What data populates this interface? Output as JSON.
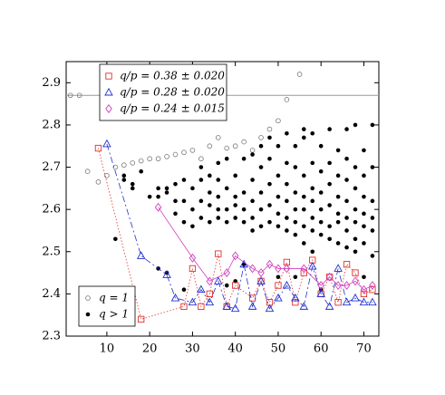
{
  "chart_data": {
    "type": "scatter",
    "xlim": [
      0.5,
      73.5
    ],
    "ylim": [
      2.3,
      2.95
    ],
    "xticks": [
      10,
      20,
      30,
      40,
      50,
      60,
      70
    ],
    "yticks": [
      2.3,
      2.4,
      2.5,
      2.6,
      2.7,
      2.8,
      2.9
    ],
    "hline": 2.87,
    "hline_color": "#999999",
    "series": [
      {
        "name": "q = 1",
        "color": "#777777",
        "marker": "open-circle",
        "x": [
          1.5,
          3.6,
          5.5,
          8,
          10,
          12,
          14,
          16,
          18,
          20,
          22,
          24,
          26,
          28,
          30,
          32,
          34,
          36,
          38,
          40,
          42,
          44,
          46,
          48,
          50,
          52,
          55
        ],
        "values": [
          2.87,
          2.87,
          2.69,
          2.665,
          2.68,
          2.7,
          2.705,
          2.71,
          2.715,
          2.72,
          2.72,
          2.725,
          2.73,
          2.735,
          2.74,
          2.72,
          2.75,
          2.77,
          2.745,
          2.75,
          2.76,
          2.74,
          2.77,
          2.79,
          2.81,
          2.86,
          2.92
        ]
      },
      {
        "name": "q > 1",
        "color": "#000000",
        "marker": "dot",
        "x": [
          12,
          14,
          14,
          16,
          16,
          18,
          20,
          22,
          22,
          22,
          24,
          24,
          24,
          26,
          26,
          26,
          28,
          28,
          28,
          28,
          30,
          30,
          30,
          32,
          32,
          32,
          32,
          34,
          34,
          34,
          34,
          36,
          36,
          36,
          36,
          36,
          38,
          38,
          38,
          38,
          38,
          40,
          40,
          40,
          40,
          40,
          42,
          42,
          42,
          42,
          42,
          44,
          44,
          44,
          44,
          44,
          46,
          46,
          46,
          46,
          46,
          48,
          48,
          48,
          48,
          48,
          50,
          50,
          50,
          50,
          50,
          50,
          52,
          52,
          52,
          52,
          52,
          52,
          54,
          54,
          54,
          54,
          54,
          54,
          54,
          56,
          56,
          56,
          56,
          56,
          56,
          56,
          58,
          58,
          58,
          58,
          58,
          58,
          58,
          60,
          60,
          60,
          60,
          60,
          60,
          60,
          62,
          62,
          62,
          62,
          62,
          62,
          64,
          64,
          64,
          64,
          64,
          64,
          66,
          66,
          66,
          66,
          66,
          66,
          66,
          68,
          68,
          68,
          68,
          68,
          68,
          68,
          70,
          70,
          70,
          70,
          70,
          70,
          70,
          72,
          72,
          72,
          72,
          72,
          72
        ],
        "values": [
          2.53,
          2.68,
          2.67,
          2.66,
          2.65,
          2.69,
          2.63,
          2.46,
          2.65,
          2.63,
          2.45,
          2.64,
          2.65,
          2.59,
          2.66,
          2.62,
          2.41,
          2.57,
          2.62,
          2.67,
          2.56,
          2.6,
          2.65,
          2.58,
          2.62,
          2.67,
          2.7,
          2.57,
          2.61,
          2.64,
          2.68,
          2.58,
          2.6,
          2.63,
          2.67,
          2.71,
          2.42,
          2.57,
          2.6,
          2.65,
          2.72,
          2.43,
          2.58,
          2.61,
          2.63,
          2.68,
          2.57,
          2.6,
          2.64,
          2.72,
          2.47,
          2.55,
          2.58,
          2.62,
          2.67,
          2.73,
          2.56,
          2.6,
          2.64,
          2.7,
          2.75,
          2.57,
          2.61,
          2.66,
          2.72,
          2.77,
          2.44,
          2.56,
          2.59,
          2.63,
          2.68,
          2.75,
          2.55,
          2.58,
          2.62,
          2.66,
          2.71,
          2.78,
          2.44,
          2.54,
          2.57,
          2.6,
          2.64,
          2.7,
          2.75,
          2.52,
          2.56,
          2.6,
          2.63,
          2.68,
          2.77,
          2.79,
          2.5,
          2.55,
          2.58,
          2.62,
          2.65,
          2.71,
          2.78,
          2.41,
          2.54,
          2.57,
          2.6,
          2.64,
          2.69,
          2.75,
          2.53,
          2.56,
          2.61,
          2.66,
          2.71,
          2.79,
          2.52,
          2.57,
          2.59,
          2.63,
          2.68,
          2.74,
          2.51,
          2.55,
          2.58,
          2.62,
          2.67,
          2.72,
          2.79,
          2.5,
          2.53,
          2.57,
          2.6,
          2.65,
          2.7,
          2.8,
          2.44,
          2.52,
          2.56,
          2.59,
          2.63,
          2.68,
          2.74,
          2.49,
          2.55,
          2.58,
          2.62,
          2.7,
          2.8
        ]
      },
      {
        "name": "q/p = 0.38 ± 0.020",
        "color": "#e0302a",
        "marker": "square",
        "line_style": "dotted",
        "x": [
          8,
          18,
          28,
          30,
          32,
          34,
          36,
          38,
          40,
          44,
          46,
          48,
          50,
          52,
          54,
          56,
          58,
          60,
          62,
          64,
          66,
          68,
          70,
          72
        ],
        "values": [
          2.745,
          2.34,
          2.37,
          2.46,
          2.37,
          2.4,
          2.495,
          2.37,
          2.42,
          2.39,
          2.43,
          2.38,
          2.42,
          2.475,
          2.38,
          2.45,
          2.48,
          2.4,
          2.44,
          2.38,
          2.47,
          2.45,
          2.4,
          2.41
        ]
      },
      {
        "name": "q/p = 0.28 ± 0.020",
        "color": "#2030d0",
        "marker": "triangle",
        "line_style": "dashed",
        "x": [
          10,
          18,
          24,
          26,
          30,
          32,
          34,
          36,
          38,
          40,
          42,
          44,
          46,
          48,
          50,
          52,
          54,
          56,
          58,
          60,
          62,
          64,
          66,
          68,
          70,
          72
        ],
        "values": [
          2.755,
          2.49,
          2.445,
          2.39,
          2.38,
          2.41,
          2.38,
          2.43,
          2.37,
          2.365,
          2.47,
          2.37,
          2.43,
          2.365,
          2.39,
          2.42,
          2.39,
          2.37,
          2.465,
          2.4,
          2.37,
          2.46,
          2.38,
          2.39,
          2.38,
          2.38
        ]
      },
      {
        "name": "q/p = 0.24 ± 0.015",
        "color": "#d040c0",
        "marker": "diamond",
        "line_style": "solid",
        "x": [
          22,
          30,
          34,
          38,
          40,
          44,
          46,
          48,
          50,
          52,
          56,
          60,
          62,
          64,
          66,
          68,
          70,
          72
        ],
        "values": [
          2.605,
          2.485,
          2.43,
          2.45,
          2.49,
          2.46,
          2.45,
          2.47,
          2.46,
          2.46,
          2.46,
          2.42,
          2.44,
          2.42,
          2.42,
          2.43,
          2.41,
          2.42
        ]
      }
    ]
  }
}
